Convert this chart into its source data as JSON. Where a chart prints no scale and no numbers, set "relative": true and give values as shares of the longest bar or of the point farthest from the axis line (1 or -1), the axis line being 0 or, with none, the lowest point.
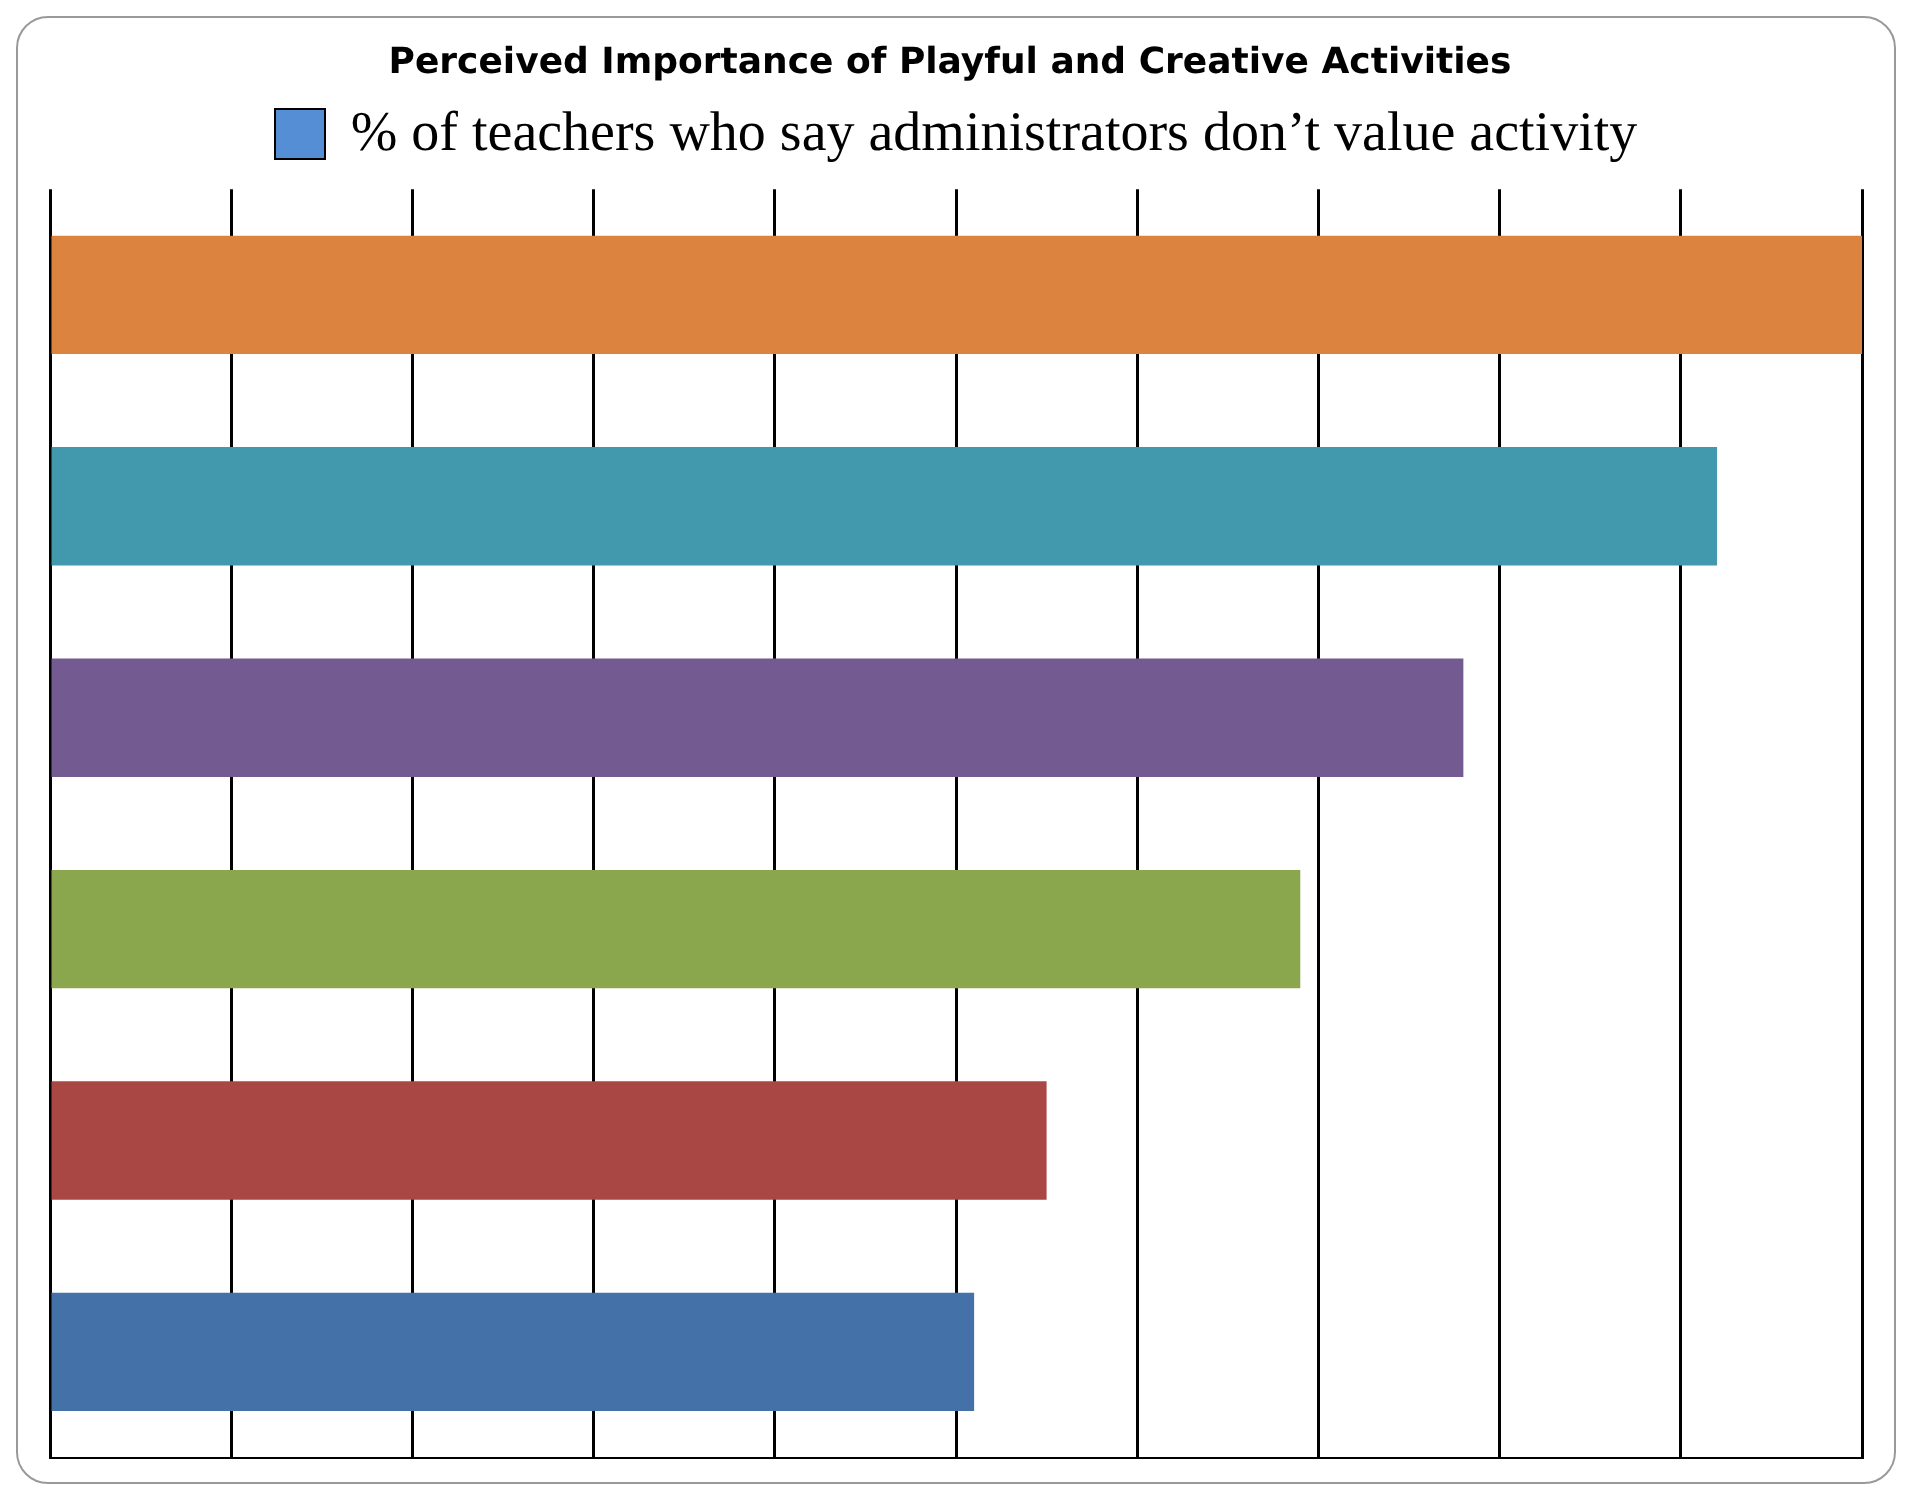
{
  "chart_data": {
    "type": "bar",
    "title": "Perceived Importance of Playful and Creative Activities",
    "orientation": "horizontal",
    "relative": true,
    "categories": [
      null,
      null,
      null,
      null,
      null,
      null
    ],
    "series": [
      {
        "name": "% of teachers who say administrators don’t value activity",
        "color": "#558ed5",
        "colors": [
          "#dd8340",
          "#4298ad",
          "#735a90",
          "#8ba74e",
          "#a94745",
          "#4472a8"
        ],
        "values": [
          1,
          0.92,
          0.78,
          0.69,
          0.55,
          0.51
        ]
      }
    ],
    "grid": "x",
    "legend": "top"
  }
}
